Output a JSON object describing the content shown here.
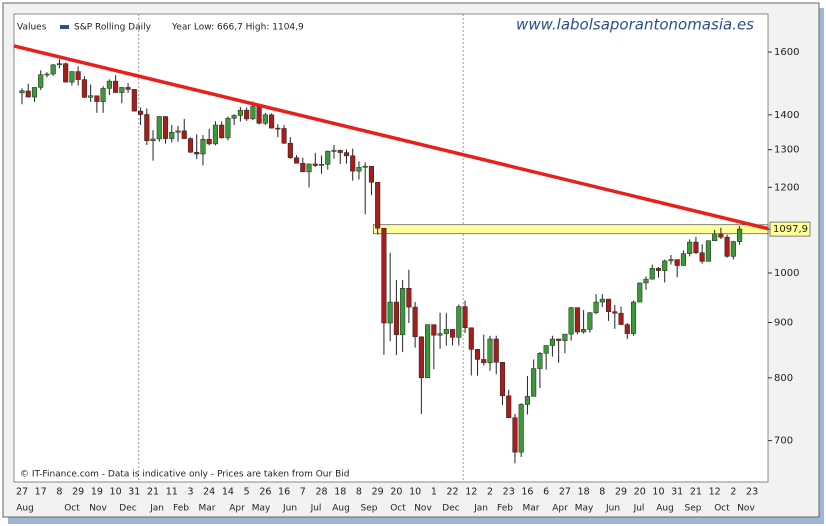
{
  "chart_data": {
    "type": "candlestick",
    "header_label": "Values",
    "title": "S&P Rolling Daily",
    "subtitle": "Year Low: 666,7  High: 1104,9",
    "website": "www.labolsaporantonomasia.es",
    "footer": "© IT-Finance.com - Data is indicative only - Prices are taken from Our Bid",
    "log_scale": true,
    "ylim": [
      641,
      1735
    ],
    "yticks": [
      700,
      800,
      900,
      1000,
      1200,
      1300,
      1400,
      1600
    ],
    "last_price": {
      "value": 1097.9,
      "label": "1097,9"
    },
    "trendline": {
      "start": 1621,
      "end": 1099,
      "color": "#e8201c"
    },
    "zone": {
      "low": 1087,
      "high": 1108,
      "color": "#ffff99"
    },
    "up_color": "#3a9a3a",
    "down_color": "#a81c1c",
    "x_tick_labels": [
      "27",
      "17",
      "8",
      "29",
      "19",
      "10",
      "31",
      "21",
      "11",
      "3",
      "24",
      "14",
      "5",
      "26",
      "16",
      "7",
      "28",
      "18",
      "8",
      "29",
      "20",
      "10",
      "1",
      "22",
      "12",
      "2",
      "23",
      "16",
      "6",
      "27",
      "18",
      "8",
      "29",
      "20",
      "10",
      "31",
      "21",
      "12",
      "2",
      "23"
    ],
    "x_month_labels": [
      "Aug",
      "Oct",
      "Nov",
      "Dec",
      "Jan",
      "Feb",
      "Mar",
      "Apr",
      "May",
      "Jun",
      "Jul",
      "Aug",
      "Sep",
      "Oct",
      "Nov",
      "Dec",
      "Jan",
      "Feb",
      "Mar",
      "Apr",
      "May",
      "Jun",
      "Jul",
      "Aug",
      "Sep",
      "Oct",
      "Nov"
    ],
    "open": [
      1467,
      1473,
      1454,
      1484,
      1525,
      1527,
      1557,
      1561,
      1501,
      1535,
      1509,
      1453,
      1458,
      1440,
      1481,
      1504,
      1468,
      1484,
      1478,
      1411,
      1401,
      1325,
      1330,
      1395,
      1331,
      1349,
      1353,
      1331,
      1293,
      1288,
      1329,
      1316,
      1370,
      1333,
      1390,
      1398,
      1414,
      1388,
      1425,
      1375,
      1400,
      1361,
      1360,
      1318,
      1278,
      1263,
      1240,
      1261,
      1257,
      1260,
      1296,
      1298,
      1292,
      1283,
      1242,
      1252,
      1255,
      1213,
      1100,
      899,
      940,
      877,
      968,
      930,
      873,
      800,
      896,
      876,
      879,
      887,
      872,
      931,
      890,
      850,
      832,
      826,
      869,
      827,
      770,
      735,
      683,
      756,
      769,
      816,
      843,
      857,
      869,
      866,
      878,
      929,
      882,
      887,
      919,
      940,
      946,
      921,
      918,
      896,
      879,
      940,
      979,
      987,
      1010,
      1005,
      1026,
      1029,
      1016,
      1042,
      1068,
      1044,
      1025,
      1071,
      1087,
      1079,
      1036,
      1069
    ],
    "high": [
      1481,
      1496,
      1485,
      1539,
      1533,
      1560,
      1576,
      1565,
      1536,
      1552,
      1520,
      1493,
      1458,
      1488,
      1510,
      1523,
      1485,
      1498,
      1479,
      1422,
      1419,
      1355,
      1396,
      1396,
      1370,
      1367,
      1388,
      1335,
      1343,
      1341,
      1359,
      1381,
      1381,
      1395,
      1402,
      1423,
      1422,
      1440,
      1427,
      1406,
      1404,
      1372,
      1370,
      1335,
      1285,
      1278,
      1262,
      1291,
      1284,
      1297,
      1313,
      1300,
      1301,
      1303,
      1268,
      1265,
      1255,
      1213,
      1100,
      1044,
      985,
      985,
      1007,
      940,
      874,
      896,
      896,
      919,
      918,
      887,
      935,
      943,
      890,
      850,
      877,
      875,
      875,
      827,
      780,
      741,
      758,
      803,
      832,
      845,
      857,
      875,
      869,
      878,
      930,
      929,
      924,
      920,
      956,
      956,
      946,
      934,
      931,
      899,
      943,
      980,
      993,
      1018,
      1013,
      1029,
      1039,
      1029,
      1049,
      1074,
      1080,
      1063,
      1072,
      1096,
      1101,
      1085,
      1071,
      1105
    ],
    "low": [
      1432,
      1453,
      1439,
      1476,
      1516,
      1521,
      1546,
      1500,
      1490,
      1490,
      1451,
      1439,
      1406,
      1406,
      1460,
      1467,
      1435,
      1467,
      1411,
      1370,
      1313,
      1270,
      1322,
      1317,
      1320,
      1322,
      1330,
      1291,
      1274,
      1257,
      1312,
      1312,
      1331,
      1326,
      1370,
      1380,
      1382,
      1384,
      1372,
      1370,
      1360,
      1335,
      1316,
      1275,
      1262,
      1240,
      1200,
      1253,
      1235,
      1246,
      1275,
      1261,
      1262,
      1217,
      1220,
      1133,
      1180,
      1085,
      840,
      865,
      840,
      845,
      899,
      853,
      741,
      800,
      815,
      851,
      857,
      857,
      857,
      880,
      804,
      804,
      821,
      812,
      806,
      755,
      734,
      667,
      676,
      740,
      769,
      783,
      814,
      837,
      826,
      843,
      866,
      878,
      879,
      881,
      916,
      930,
      903,
      888,
      895,
      869,
      875,
      940,
      965,
      986,
      990,
      980,
      1018,
      991,
      1016,
      1036,
      1041,
      1020,
      1025,
      1071,
      1075,
      1033,
      1029,
      1062
    ],
    "close": [
      1474,
      1454,
      1484,
      1525,
      1527,
      1557,
      1561,
      1501,
      1535,
      1509,
      1453,
      1458,
      1440,
      1481,
      1504,
      1468,
      1484,
      1478,
      1411,
      1401,
      1325,
      1330,
      1395,
      1331,
      1349,
      1353,
      1331,
      1293,
      1288,
      1329,
      1316,
      1370,
      1333,
      1390,
      1398,
      1414,
      1388,
      1425,
      1375,
      1400,
      1361,
      1360,
      1318,
      1278,
      1263,
      1240,
      1261,
      1257,
      1260,
      1296,
      1298,
      1292,
      1283,
      1242,
      1252,
      1255,
      1213,
      1100,
      899,
      940,
      877,
      968,
      930,
      873,
      800,
      896,
      876,
      879,
      887,
      872,
      931,
      890,
      850,
      832,
      826,
      869,
      827,
      770,
      735,
      683,
      756,
      769,
      816,
      843,
      857,
      869,
      866,
      878,
      929,
      882,
      887,
      919,
      940,
      946,
      921,
      918,
      896,
      879,
      940,
      979,
      987,
      1010,
      1005,
      1026,
      1029,
      1016,
      1042,
      1068,
      1044,
      1025,
      1071,
      1087,
      1079,
      1036,
      1069,
      1098
    ]
  }
}
